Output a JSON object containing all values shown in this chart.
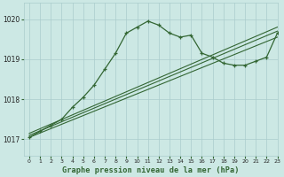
{
  "background_color": "#cce8e4",
  "grid_color": "#aacccc",
  "line_color": "#336633",
  "title": "Graphe pression niveau de la mer (hPa)",
  "xlim": [
    -0.5,
    23
  ],
  "ylim": [
    1016.6,
    1020.4
  ],
  "yticks": [
    1017,
    1018,
    1019,
    1020
  ],
  "xticks": [
    0,
    1,
    2,
    3,
    4,
    5,
    6,
    7,
    8,
    9,
    10,
    11,
    12,
    13,
    14,
    15,
    16,
    17,
    18,
    19,
    20,
    21,
    22,
    23
  ],
  "main_x": [
    0,
    1,
    2,
    3,
    4,
    5,
    6,
    7,
    8,
    9,
    10,
    11,
    12,
    13,
    14,
    15,
    16,
    17,
    18,
    19,
    20,
    21,
    22,
    23
  ],
  "main_y": [
    1017.05,
    1017.2,
    1017.35,
    1017.5,
    1017.8,
    1018.05,
    1018.35,
    1018.75,
    1019.15,
    1019.65,
    1019.8,
    1019.95,
    1019.85,
    1019.65,
    1019.55,
    1019.6,
    1019.15,
    1019.05,
    1018.9,
    1018.85,
    1018.85,
    1018.95,
    1019.05,
    1019.65
  ],
  "line2_x": [
    0,
    23
  ],
  "line2_y": [
    1017.05,
    1019.55
  ],
  "line3_x": [
    0,
    23
  ],
  "line3_y": [
    1017.1,
    1019.7
  ],
  "line4_x": [
    0,
    23
  ],
  "line4_y": [
    1017.15,
    1019.8
  ]
}
